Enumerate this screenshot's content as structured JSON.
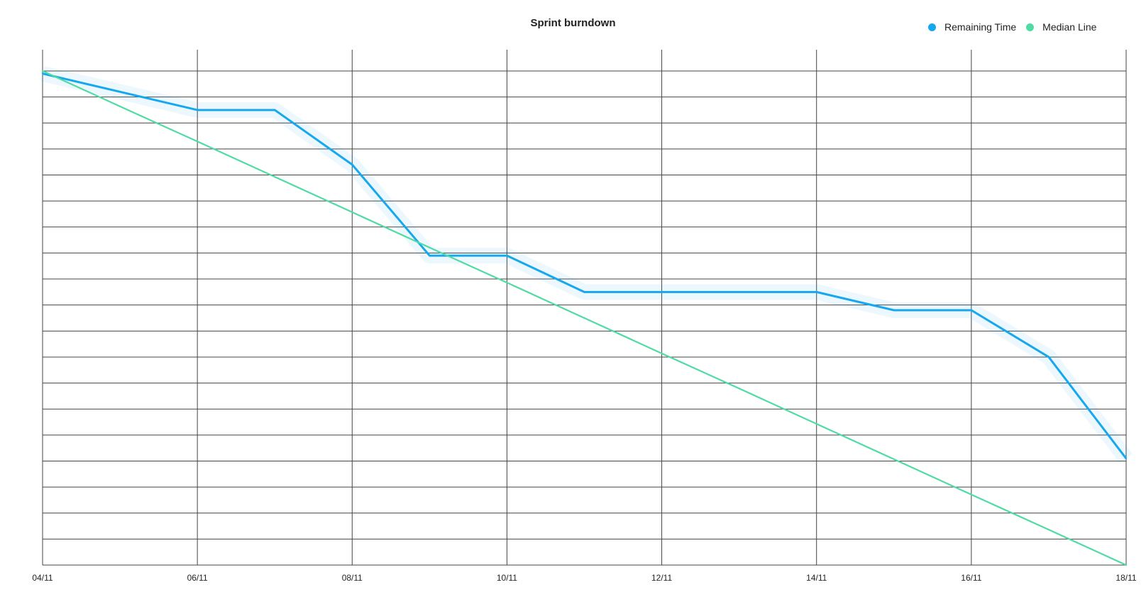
{
  "colors": {
    "remaining": "#16a8ee",
    "median": "#4fdba4",
    "grid": "#444444"
  },
  "chart_data": {
    "type": "line",
    "title": "Sprint burndown",
    "xlabel": "",
    "ylabel": "",
    "x_tick_labels": [
      "04/11",
      "06/11",
      "08/11",
      "10/11",
      "12/11",
      "14/11",
      "16/11",
      "18/11"
    ],
    "x": [
      "04/11",
      "05/11",
      "06/11",
      "07/11",
      "08/11",
      "09/11",
      "10/11",
      "11/11",
      "12/11",
      "13/11",
      "14/11",
      "15/11",
      "16/11",
      "17/11",
      "18/11"
    ],
    "ylim": [
      0,
      19
    ],
    "y_gridlines": 19,
    "grid": true,
    "legend_position": "top-right",
    "series": [
      {
        "name": "Remaining Time",
        "color_key": "remaining",
        "values": [
          18.9,
          18.2,
          17.5,
          17.5,
          15.4,
          11.9,
          11.9,
          10.5,
          10.5,
          10.5,
          10.5,
          9.8,
          9.8,
          8.0,
          4.1
        ]
      },
      {
        "name": "Median Line",
        "color_key": "median",
        "values": [
          19,
          17.64,
          16.29,
          14.93,
          13.57,
          12.21,
          10.86,
          9.5,
          8.14,
          6.79,
          5.43,
          4.07,
          2.71,
          1.36,
          0
        ]
      }
    ]
  }
}
